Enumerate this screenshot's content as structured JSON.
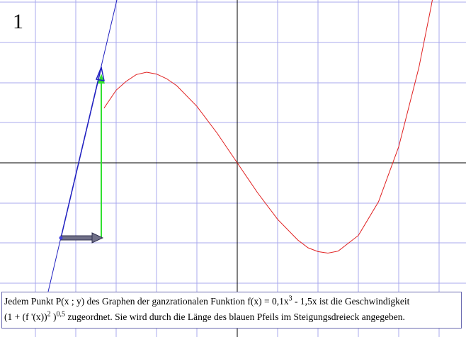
{
  "label": "1",
  "caption": {
    "line1": [
      "Jedem Punkt P(x ; y) des Graphen der ganzrationalen Funktion f(x) = 0,1x",
      "3",
      " - 1,5x ist die Geschwindigkeit"
    ],
    "line2": [
      "(1 + (f '(x))",
      "2",
      " )",
      "0,5",
      " zugeordnet. Sie wird durch die Länge des blauen Pfeils im Steigungsdreieck angegeben."
    ]
  }
}
